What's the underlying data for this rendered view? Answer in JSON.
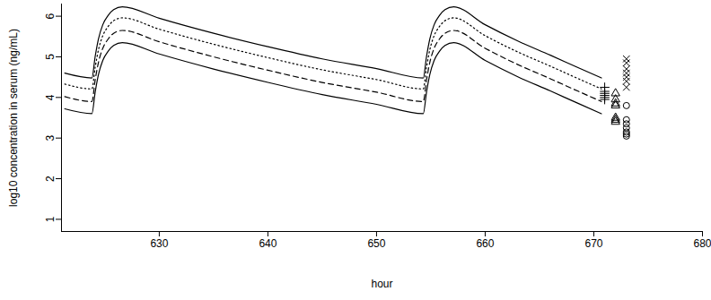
{
  "chart_data": {
    "type": "line",
    "xlabel": "hour",
    "ylabel": "log10 concentration in serum (ng/mL)",
    "xlim": [
      621,
      680
    ],
    "xticks": [
      630,
      640,
      650,
      660,
      670,
      680
    ],
    "ylim": [
      0.7,
      6.3
    ],
    "yticks": [
      1,
      2,
      3,
      4,
      5,
      6
    ],
    "grid": false,
    "x": [
      621.3,
      623.8,
      624.1,
      624.4,
      624.8,
      625.3,
      625.8,
      626.6,
      630,
      635,
      640,
      645,
      650,
      654.3,
      654.6,
      654.9,
      655.3,
      655.8,
      656.3,
      657.1,
      660,
      663,
      666,
      668.5,
      670.7
    ],
    "series": [
      {
        "type": "line",
        "color": "#000000",
        "line_style": "solid",
        "values": [
          4.6,
          4.48,
          5.01,
          5.44,
          5.79,
          6.02,
          6.16,
          6.23,
          5.95,
          5.58,
          5.25,
          4.95,
          4.71,
          4.48,
          5.01,
          5.44,
          5.79,
          6.02,
          6.16,
          6.23,
          5.79,
          5.39,
          5.04,
          4.74,
          4.48
        ]
      },
      {
        "type": "line",
        "color": "#000000",
        "line_style": "dotted",
        "values": [
          4.33,
          4.21,
          4.74,
          5.17,
          5.52,
          5.75,
          5.89,
          5.96,
          5.68,
          5.31,
          4.98,
          4.68,
          4.44,
          4.21,
          4.74,
          5.17,
          5.52,
          5.75,
          5.89,
          5.96,
          5.52,
          5.12,
          4.77,
          4.47,
          4.21
        ]
      },
      {
        "type": "line",
        "color": "#000000",
        "line_style": "dashed",
        "values": [
          4.02,
          3.9,
          4.43,
          4.86,
          5.21,
          5.44,
          5.58,
          5.65,
          5.37,
          5.0,
          4.67,
          4.37,
          4.13,
          3.9,
          4.43,
          4.86,
          5.21,
          5.44,
          5.58,
          5.65,
          5.21,
          4.81,
          4.46,
          4.16,
          3.9
        ]
      },
      {
        "type": "line",
        "color": "#000000",
        "line_style": "solid",
        "values": [
          3.72,
          3.6,
          4.13,
          4.56,
          4.91,
          5.14,
          5.28,
          5.35,
          5.07,
          4.7,
          4.37,
          4.07,
          3.83,
          3.6,
          4.13,
          4.56,
          4.91,
          5.14,
          5.28,
          5.35,
          4.91,
          4.51,
          4.16,
          3.86,
          3.6
        ]
      },
      {
        "type": "scatter",
        "color": "#000000",
        "marker": "plus",
        "x": [
          671,
          671,
          671,
          671,
          671,
          671
        ],
        "values": [
          4.25,
          4.15,
          4.1,
          4.05,
          4.0,
          3.95
        ]
      },
      {
        "type": "scatter",
        "color": "#000000",
        "marker": "triangle",
        "x": [
          672,
          672,
          672,
          672,
          672,
          672,
          672
        ],
        "values": [
          4.1,
          3.95,
          3.85,
          3.8,
          3.5,
          3.45,
          3.4
        ]
      },
      {
        "type": "scatter",
        "color": "#000000",
        "marker": "times",
        "x": [
          673,
          673,
          673,
          673,
          673,
          673,
          673
        ],
        "values": [
          4.95,
          4.85,
          4.7,
          4.6,
          4.5,
          4.4,
          4.25
        ]
      },
      {
        "type": "scatter",
        "color": "#000000",
        "marker": "circle",
        "x": [
          673,
          673,
          673,
          673,
          673,
          673,
          673
        ],
        "values": [
          3.8,
          3.45,
          3.35,
          3.25,
          3.15,
          3.1,
          3.05
        ]
      }
    ]
  }
}
